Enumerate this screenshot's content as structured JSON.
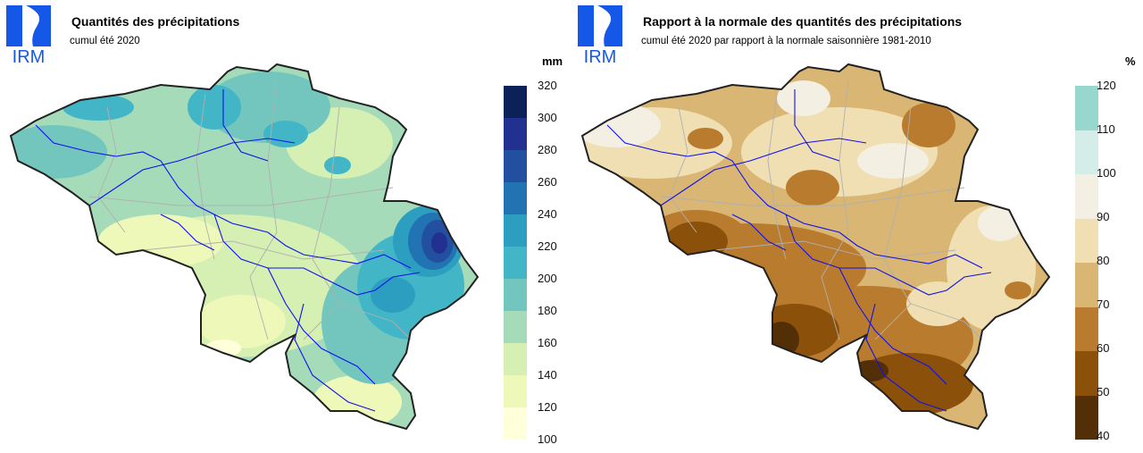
{
  "left": {
    "logo_text": "IRM",
    "title": "Quantités des précipitations",
    "subtitle": "cumul été 2020",
    "unit": "mm",
    "ticks": [
      "320",
      "300",
      "280",
      "260",
      "240",
      "220",
      "200",
      "180",
      "160",
      "140",
      "120",
      "100"
    ],
    "colors": [
      "#0c2158",
      "#223190",
      "#234fa0",
      "#2173b2",
      "#2c9fc1",
      "#42b6c7",
      "#72c6bd",
      "#a5dbb8",
      "#d6efb3",
      "#eef8b8",
      "#ffffd9"
    ]
  },
  "right": {
    "logo_text": "IRM",
    "title": "Rapport à la normale des quantités des précipitations",
    "subtitle": "cumul été 2020 par rapport à la normale saisonnière 1981-2010",
    "unit": "%",
    "ticks": [
      "120",
      "110",
      "100",
      "90",
      "80",
      "70",
      "60",
      "50",
      "40"
    ],
    "colors": [
      "#98d7cd",
      "#d4ede9",
      "#f4efe3",
      "#f0dfb2",
      "#d9b673",
      "#b97b2e",
      "#8b5009",
      "#532f07"
    ]
  }
}
